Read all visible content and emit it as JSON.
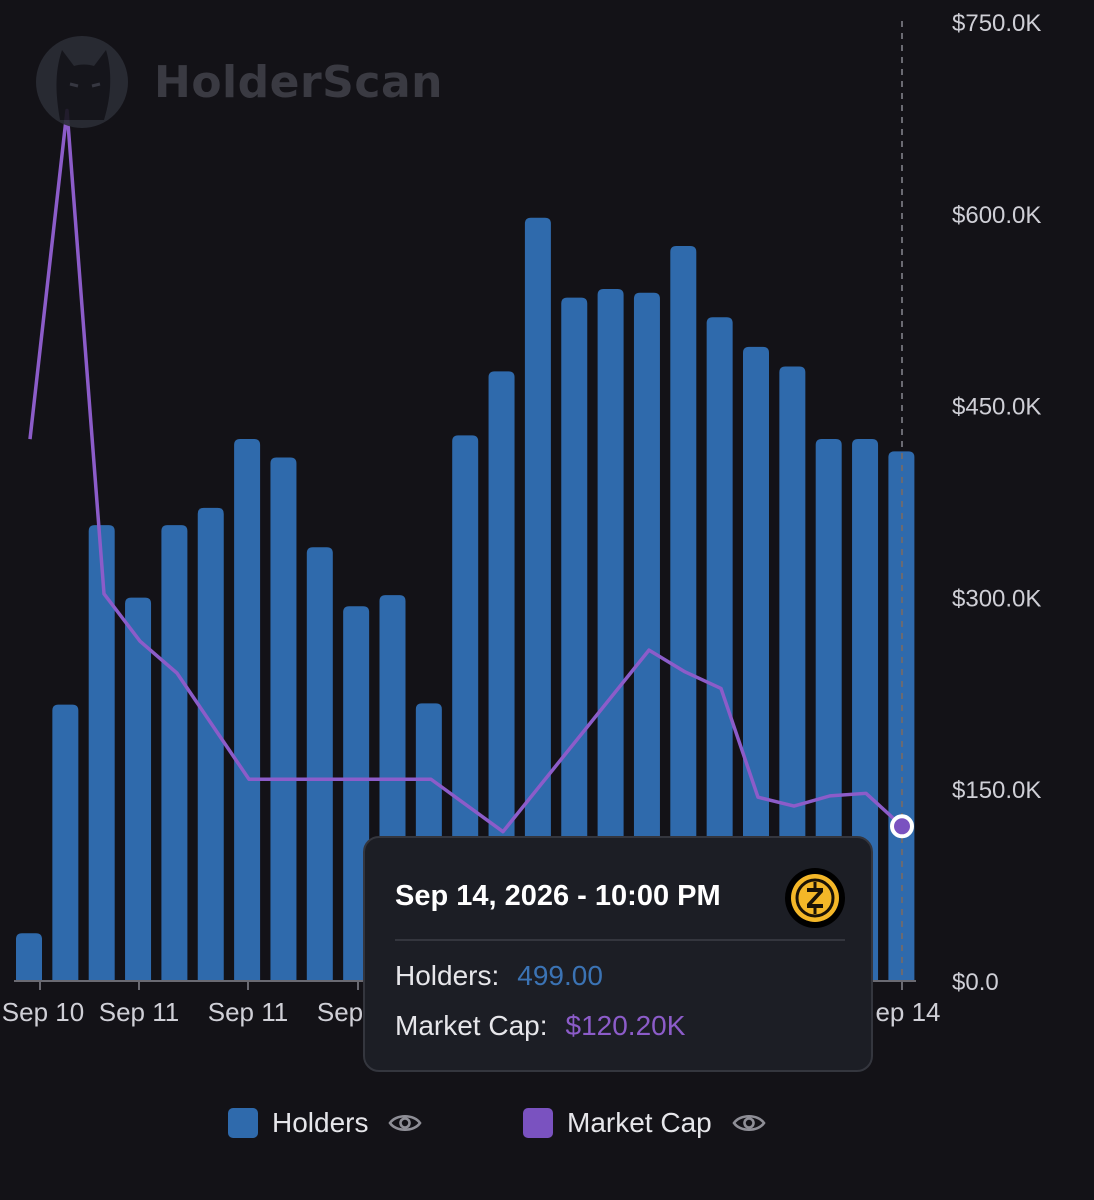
{
  "watermark": {
    "brand": "HolderScan",
    "logo_icon": "cat-head-icon"
  },
  "chart_data": {
    "type": "bar+line",
    "x_tick_labels": [
      "Sep 10",
      "Sep 11",
      "Sep 11",
      "Sep",
      "ep 14"
    ],
    "y_axis_right": {
      "min": 0,
      "max": 750000,
      "tick_labels": [
        "$0.0",
        "$150.0K",
        "$300.0K",
        "$450.0K",
        "$600.0K",
        "$750.0K"
      ]
    },
    "series": [
      {
        "name": "Holders",
        "type": "bar",
        "color": "#2f6aac",
        "values": [
          38,
          224,
          370,
          311,
          370,
          384,
          440,
          425,
          352,
          304,
          313,
          225,
          443,
          495,
          620,
          555,
          562,
          559,
          597,
          539,
          515,
          499,
          440,
          440,
          430
        ]
      },
      {
        "name": "Market Cap",
        "type": "line",
        "color": "#8c5cc9",
        "values": [
          423000,
          680000,
          302000,
          265000,
          240000,
          157000,
          157000,
          157000,
          116000,
          258000,
          241000,
          228000,
          143000,
          136000,
          144000,
          146000,
          120200
        ]
      }
    ],
    "grid": false,
    "legend_position": "bottom"
  },
  "tooltip": {
    "title": "Sep 14, 2026 - 10:00 PM",
    "holders_label": "Holders:",
    "holders_value": "499.00",
    "mcap_label": "Market Cap:",
    "mcap_value": "$120.20K",
    "token_icon": "zcash-coin-icon"
  },
  "legend": {
    "holders_label": "Holders",
    "holders_color": "#2f6aac",
    "mcap_label": "Market Cap",
    "mcap_color": "#7a52c0",
    "visibility_icon": "eye-icon"
  }
}
